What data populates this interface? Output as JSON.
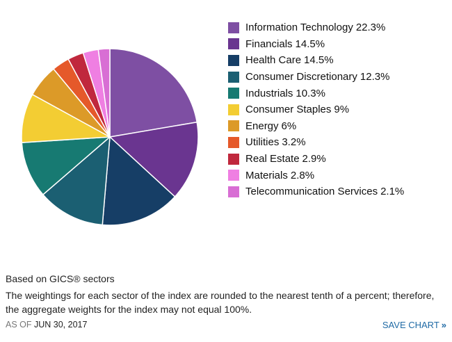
{
  "chart_data": {
    "type": "pie",
    "start_angle": "12 o'clock, clockwise",
    "slices": [
      {
        "label": "Information Technology",
        "value": 22.3,
        "display": "22.3%",
        "color": "#7e4fa3"
      },
      {
        "label": "Financials",
        "value": 14.5,
        "display": "14.5%",
        "color": "#6a3590"
      },
      {
        "label": "Health Care",
        "value": 14.5,
        "display": "14.5%",
        "color": "#163e66"
      },
      {
        "label": "Consumer Discretionary",
        "value": 12.3,
        "display": "12.3%",
        "color": "#1b5f72"
      },
      {
        "label": "Industrials",
        "value": 10.3,
        "display": "10.3%",
        "color": "#177a72"
      },
      {
        "label": "Consumer Staples",
        "value": 9,
        "display": "9%",
        "color": "#f3cd33"
      },
      {
        "label": "Energy",
        "value": 6,
        "display": "6%",
        "color": "#dc9a28"
      },
      {
        "label": "Utilities",
        "value": 3.2,
        "display": "3.2%",
        "color": "#e5592a"
      },
      {
        "label": "Real Estate",
        "value": 2.9,
        "display": "2.9%",
        "color": "#c0283d"
      },
      {
        "label": "Materials",
        "value": 2.8,
        "display": "2.8%",
        "color": "#ef7fe2"
      },
      {
        "label": "Telecommunication Services",
        "value": 2.1,
        "display": "2.1%",
        "color": "#d86ed4"
      }
    ],
    "legend_position": "right"
  },
  "notes": {
    "title": "Based on GICS® sectors",
    "body": "The weightings for each sector of the index are rounded to the nearest tenth of a percent; therefore, the aggregate weights for the index may not equal 100%."
  },
  "footer": {
    "as_of_label": "AS OF",
    "as_of_date": "JUN 30, 2017",
    "save_label": "SAVE CHART",
    "save_icon": "double-chevron-right-icon",
    "save_glyph": "»"
  },
  "colors": {
    "link": "#1f6aa5",
    "muted_text": "#777777"
  }
}
